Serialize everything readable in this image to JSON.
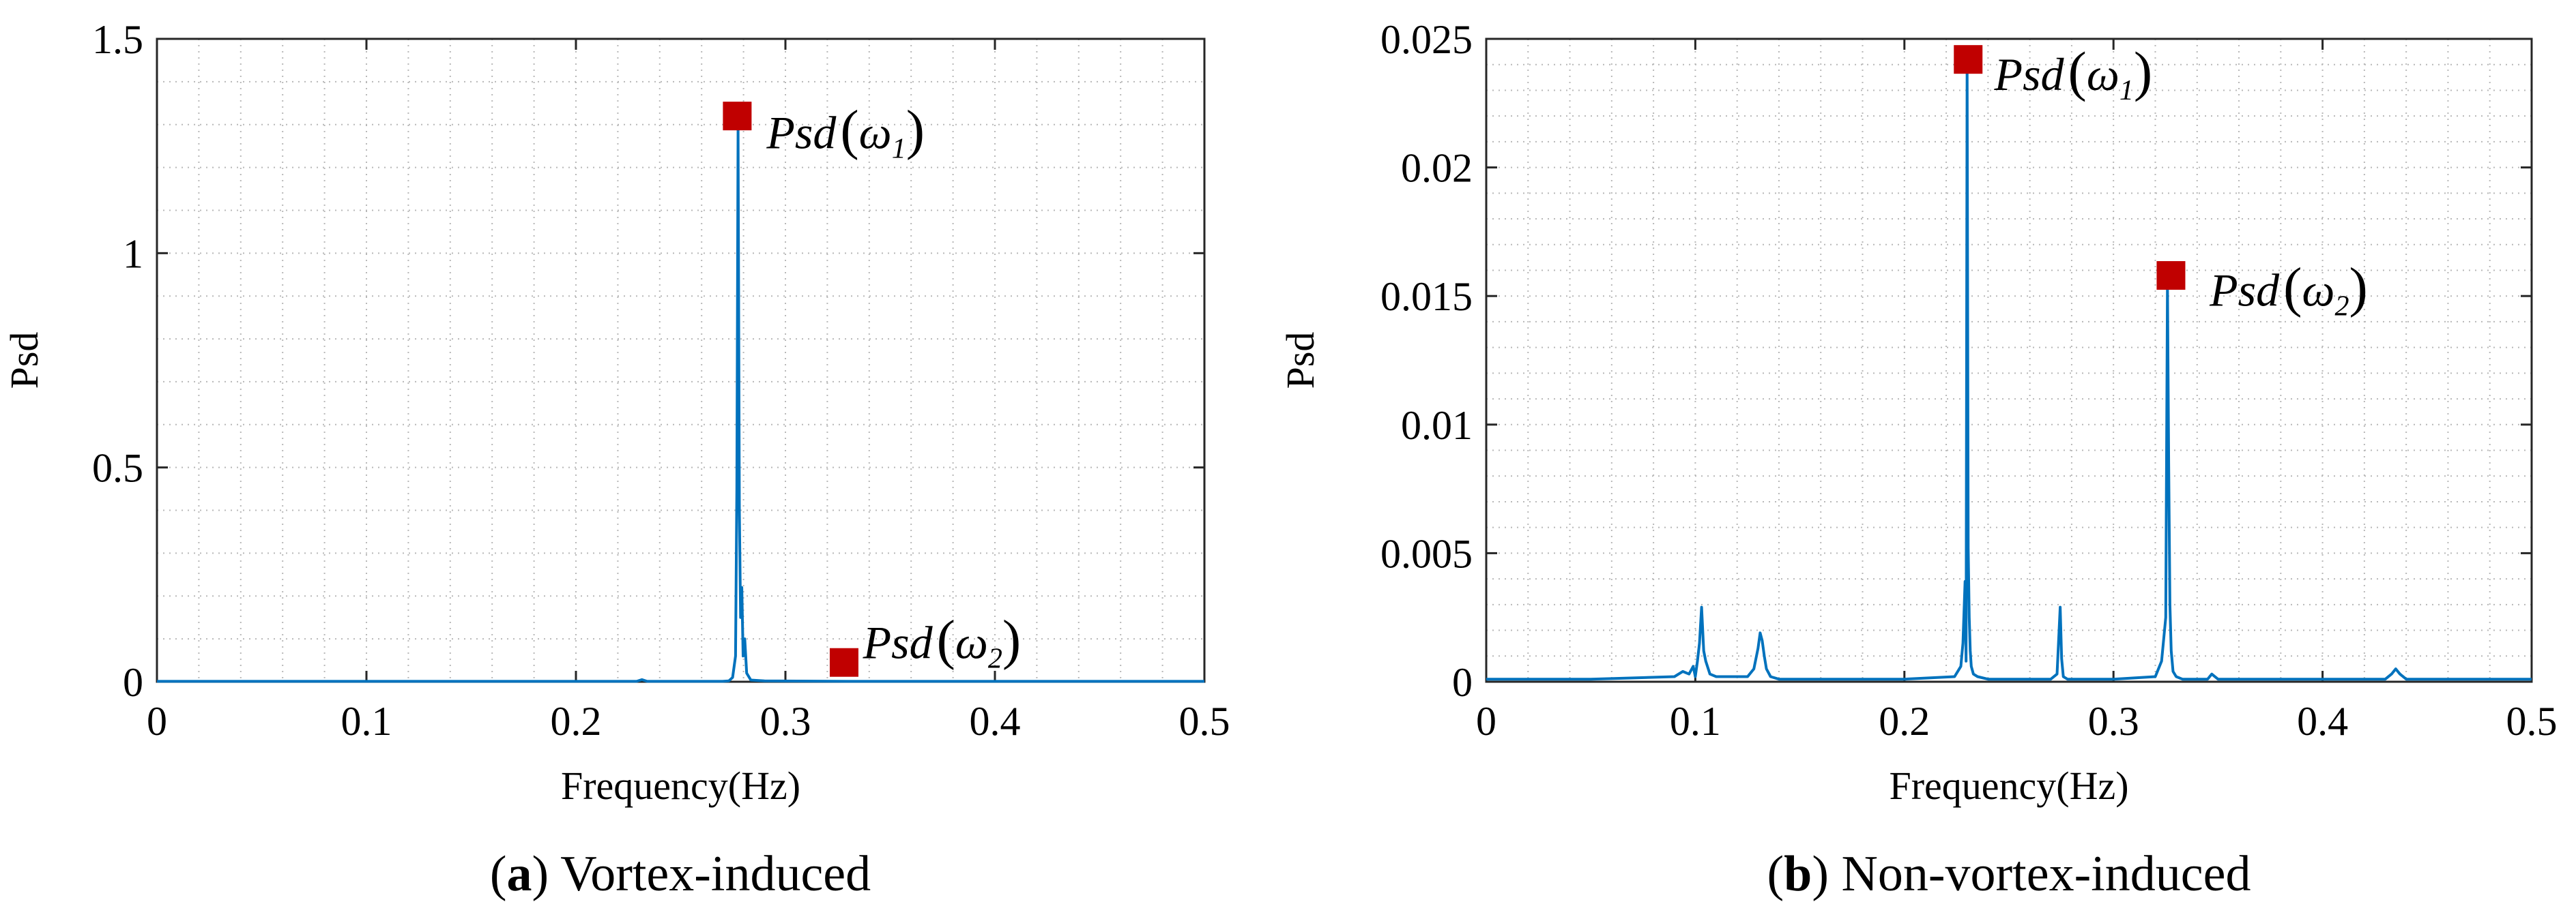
{
  "chart_data": [
    {
      "type": "line",
      "caption_letter": "a",
      "caption_text": "Vortex-induced",
      "xlabel": "Frequency(Hz)",
      "ylabel": "Psd",
      "xlim": [
        0,
        0.5
      ],
      "ylim": [
        0,
        1.5
      ],
      "xticks": [
        0,
        0.1,
        0.2,
        0.3,
        0.4,
        0.5
      ],
      "xtick_labels": [
        "0",
        "0.1",
        "0.2",
        "0.3",
        "0.4",
        "0.5"
      ],
      "yticks": [
        0,
        0.5,
        1,
        1.5
      ],
      "ytick_labels": [
        "0",
        "0.5",
        "1",
        "1.5"
      ],
      "grid": "dotted-minor",
      "line_color": "#0072BD",
      "marker_color": "#C00000",
      "series": [
        {
          "name": "Psd",
          "x": [
            0,
            0.02,
            0.1,
            0.2,
            0.229,
            0.2315,
            0.234,
            0.27,
            0.273,
            0.2748,
            0.2762,
            0.2768,
            0.2774,
            0.278,
            0.2786,
            0.2792,
            0.2798,
            0.2806,
            0.2815,
            0.2835,
            0.29,
            0.33,
            0.4,
            0.5
          ],
          "y": [
            0.001,
            0.001,
            0.001,
            0.001,
            0.001,
            0.005,
            0.001,
            0.001,
            0.002,
            0.01,
            0.06,
            0.45,
            1.29,
            0.4,
            0.15,
            0.22,
            0.06,
            0.1,
            0.02,
            0.004,
            0.002,
            0.001,
            0.001,
            0.001
          ]
        }
      ],
      "markers": [
        {
          "label": "ω1",
          "x": 0.277,
          "y": 1.32
        },
        {
          "label": "ω2",
          "x": 0.328,
          "y": 0.045
        }
      ],
      "annotations": [
        {
          "prefix": "Psd",
          "symbol": "ω",
          "subscript": "1",
          "x": 0.291,
          "y": 1.28
        },
        {
          "prefix": "Psd",
          "symbol": "ω",
          "subscript": "2",
          "x": 0.337,
          "y": 0.09
        }
      ]
    },
    {
      "type": "line",
      "caption_letter": "b",
      "caption_text": "Non-vortex-induced",
      "xlabel": "Frequency(Hz)",
      "ylabel": "Psd",
      "xlim": [
        0,
        0.5
      ],
      "ylim": [
        0,
        0.025
      ],
      "xticks": [
        0,
        0.1,
        0.2,
        0.3,
        0.4,
        0.5
      ],
      "xtick_labels": [
        "0",
        "0.1",
        "0.2",
        "0.3",
        "0.4",
        "0.5"
      ],
      "yticks": [
        0,
        0.005,
        0.01,
        0.015,
        0.02,
        0.025
      ],
      "ytick_labels": [
        "0",
        "0.005",
        "0.01",
        "0.015",
        "0.02",
        "0.025"
      ],
      "grid": "dotted-minor",
      "line_color": "#0072BD",
      "marker_color": "#C00000",
      "series": [
        {
          "name": "Psd",
          "x": [
            0,
            0.05,
            0.09,
            0.094,
            0.097,
            0.099,
            0.1,
            0.101,
            0.102,
            0.103,
            0.104,
            0.105,
            0.107,
            0.11,
            0.125,
            0.128,
            0.13,
            0.131,
            0.132,
            0.133,
            0.134,
            0.136,
            0.14,
            0.2,
            0.224,
            0.227,
            0.228,
            0.229,
            0.2295,
            0.23,
            0.2305,
            0.231,
            0.2315,
            0.232,
            0.233,
            0.235,
            0.24,
            0.27,
            0.273,
            0.2745,
            0.2752,
            0.276,
            0.278,
            0.3,
            0.32,
            0.323,
            0.325,
            0.3258,
            0.3264,
            0.327,
            0.3276,
            0.3285,
            0.33,
            0.333,
            0.345,
            0.347,
            0.35,
            0.4,
            0.43,
            0.433,
            0.435,
            0.437,
            0.44,
            0.5
          ],
          "y": [
            0.0001,
            0.0001,
            0.0002,
            0.0004,
            0.0003,
            0.0006,
            0.0002,
            0.0008,
            0.0015,
            0.0029,
            0.0012,
            0.0008,
            0.0003,
            0.0002,
            0.0002,
            0.0005,
            0.0013,
            0.0019,
            0.0016,
            0.001,
            0.0005,
            0.0002,
            0.0001,
            0.0001,
            0.0002,
            0.0006,
            0.0015,
            0.0039,
            0.0008,
            0.0242,
            0.0052,
            0.0025,
            0.0012,
            0.0006,
            0.0003,
            0.0002,
            0.0001,
            0.0001,
            0.0003,
            0.0029,
            0.0009,
            0.0002,
            0.0001,
            0.0001,
            0.0002,
            0.0008,
            0.0025,
            0.0155,
            0.0085,
            0.003,
            0.0012,
            0.0004,
            0.0002,
            0.0001,
            0.0001,
            0.0003,
            0.0001,
            0.0001,
            0.0001,
            0.0003,
            0.0005,
            0.0003,
            0.0001,
            0.0001
          ]
        }
      ],
      "markers": [
        {
          "label": "ω1",
          "x": 0.2305,
          "y": 0.0242
        },
        {
          "label": "ω2",
          "x": 0.3275,
          "y": 0.0158
        }
      ],
      "annotations": [
        {
          "prefix": "Psd",
          "symbol": "ω",
          "subscript": "1",
          "x": 0.243,
          "y": 0.0236
        },
        {
          "prefix": "Psd",
          "symbol": "ω",
          "subscript": "2",
          "x": 0.346,
          "y": 0.0152
        }
      ]
    }
  ]
}
